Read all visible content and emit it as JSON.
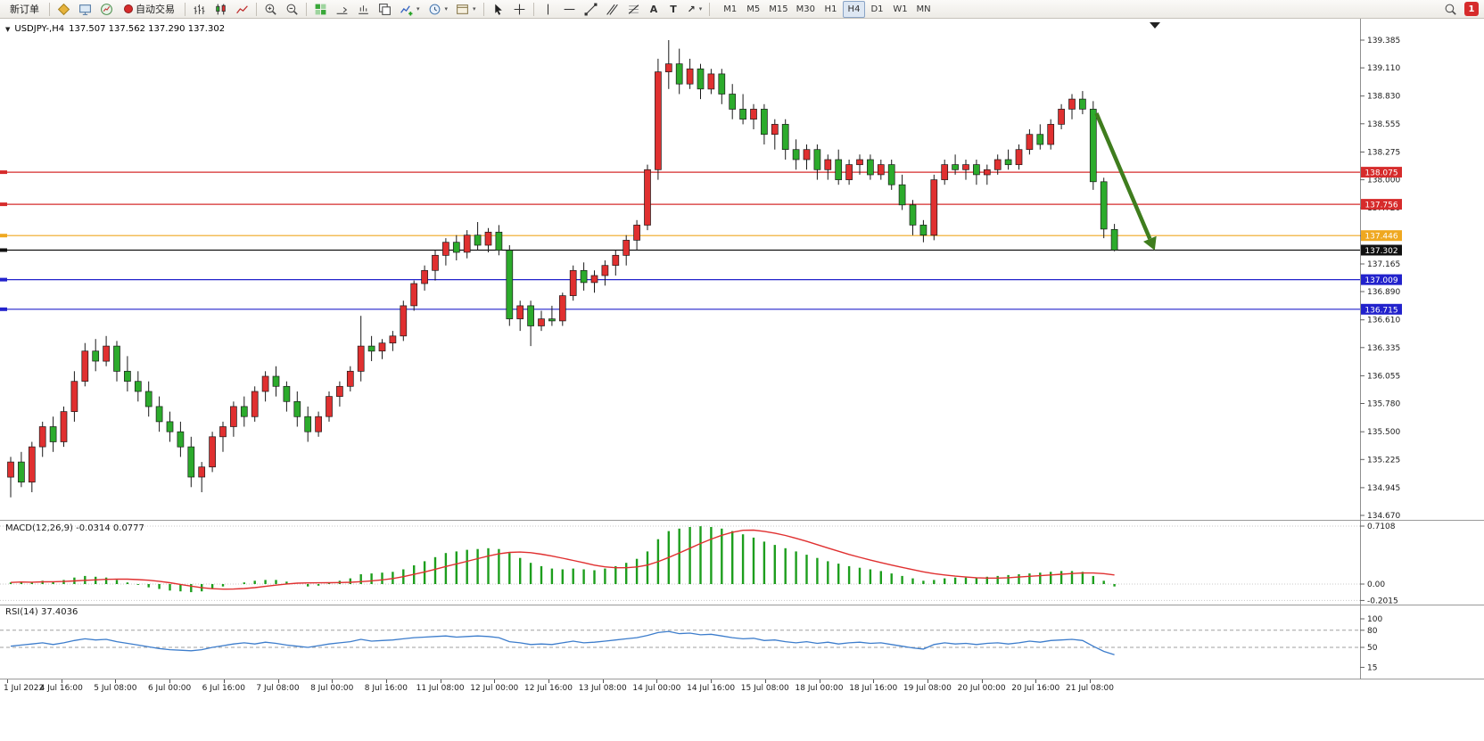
{
  "toolbar": {
    "new_order": "新订单",
    "auto_trading": "自动交易",
    "timeframes": [
      "M1",
      "M5",
      "M15",
      "M30",
      "H1",
      "H4",
      "D1",
      "W1",
      "MN"
    ],
    "active_timeframe": "H4",
    "notification_count": "1",
    "icons": {
      "text_tool": "A",
      "label_tool": "T",
      "arrow_tool": "↗",
      "caret": "▾",
      "collapse": "▼"
    }
  },
  "chart": {
    "symbol_period": "USDJPY-,H4",
    "ohlc_text": "137.507 137.562 137.290 137.302",
    "price_max": 139.385,
    "price_min": 134.67,
    "price_axis_labels": [
      "139.385",
      "139.110",
      "138.830",
      "138.555",
      "138.275",
      "138.000",
      "137.720",
      "137.445",
      "137.165",
      "136.890",
      "136.610",
      "136.335",
      "136.055",
      "135.780",
      "135.500",
      "135.225",
      "134.945",
      "134.670"
    ],
    "levels": [
      {
        "price": 138.075,
        "label": "138.075",
        "color": "#d62b2b"
      },
      {
        "price": 137.756,
        "label": "137.756",
        "color": "#d62b2b"
      },
      {
        "price": 137.446,
        "label": "137.446",
        "color": "#efa820"
      },
      {
        "price": 137.302,
        "label": "137.302",
        "color": "#101010"
      },
      {
        "price": 137.009,
        "label": "137.009",
        "color": "#2222cc"
      },
      {
        "price": 136.715,
        "label": "136.715",
        "color": "#2222cc"
      }
    ]
  },
  "chart_data": {
    "type": "candlestick",
    "title": "USDJPY- H4",
    "bull_color": "#e03030",
    "bear_color": "#2cab2c",
    "ohlc": [
      [
        135.05,
        135.25,
        134.85,
        135.2
      ],
      [
        135.2,
        135.3,
        134.95,
        135.0
      ],
      [
        135.0,
        135.4,
        134.9,
        135.35
      ],
      [
        135.35,
        135.6,
        135.25,
        135.55
      ],
      [
        135.55,
        135.65,
        135.3,
        135.4
      ],
      [
        135.4,
        135.75,
        135.35,
        135.7
      ],
      [
        135.7,
        136.1,
        135.6,
        136.0
      ],
      [
        136.0,
        136.38,
        135.95,
        136.3
      ],
      [
        136.3,
        136.42,
        136.1,
        136.2
      ],
      [
        136.2,
        136.45,
        136.15,
        136.35
      ],
      [
        136.35,
        136.4,
        136.0,
        136.1
      ],
      [
        136.1,
        136.25,
        135.9,
        136.0
      ],
      [
        136.0,
        136.1,
        135.8,
        135.9
      ],
      [
        135.9,
        136.0,
        135.65,
        135.75
      ],
      [
        135.75,
        135.85,
        135.5,
        135.6
      ],
      [
        135.6,
        135.7,
        135.4,
        135.5
      ],
      [
        135.5,
        135.6,
        135.25,
        135.35
      ],
      [
        135.35,
        135.45,
        134.95,
        135.05
      ],
      [
        135.05,
        135.2,
        134.9,
        135.15
      ],
      [
        135.15,
        135.5,
        135.1,
        135.45
      ],
      [
        135.45,
        135.6,
        135.3,
        135.55
      ],
      [
        135.55,
        135.8,
        135.45,
        135.75
      ],
      [
        135.75,
        135.85,
        135.55,
        135.65
      ],
      [
        135.65,
        135.95,
        135.6,
        135.9
      ],
      [
        135.9,
        136.1,
        135.8,
        136.05
      ],
      [
        136.05,
        136.15,
        135.85,
        135.95
      ],
      [
        135.95,
        136.0,
        135.7,
        135.8
      ],
      [
        135.8,
        135.9,
        135.55,
        135.65
      ],
      [
        135.65,
        135.75,
        135.4,
        135.5
      ],
      [
        135.5,
        135.7,
        135.45,
        135.65
      ],
      [
        135.65,
        135.9,
        135.6,
        135.85
      ],
      [
        135.85,
        136.0,
        135.75,
        135.95
      ],
      [
        135.95,
        136.15,
        135.9,
        136.1
      ],
      [
        136.1,
        136.65,
        136.0,
        136.35
      ],
      [
        136.35,
        136.45,
        136.2,
        136.3
      ],
      [
        136.3,
        136.42,
        136.22,
        136.38
      ],
      [
        136.38,
        136.5,
        136.3,
        136.45
      ],
      [
        136.45,
        136.8,
        136.4,
        136.75
      ],
      [
        136.75,
        137.0,
        136.7,
        136.97
      ],
      [
        136.97,
        137.15,
        136.9,
        137.1
      ],
      [
        137.1,
        137.3,
        137.0,
        137.25
      ],
      [
        137.25,
        137.42,
        137.15,
        137.38
      ],
      [
        137.38,
        137.45,
        137.2,
        137.28
      ],
      [
        137.28,
        137.5,
        137.22,
        137.45
      ],
      [
        137.45,
        137.58,
        137.3,
        137.35
      ],
      [
        137.35,
        137.52,
        137.28,
        137.48
      ],
      [
        137.48,
        137.55,
        137.25,
        137.3
      ],
      [
        137.3,
        137.35,
        136.55,
        136.62
      ],
      [
        136.62,
        136.8,
        136.5,
        136.75
      ],
      [
        136.75,
        136.8,
        136.35,
        136.55
      ],
      [
        136.55,
        136.7,
        136.5,
        136.62
      ],
      [
        136.62,
        136.75,
        136.55,
        136.6
      ],
      [
        136.6,
        136.88,
        136.55,
        136.85
      ],
      [
        136.85,
        137.15,
        136.8,
        137.1
      ],
      [
        137.1,
        137.18,
        136.9,
        136.98
      ],
      [
        136.98,
        137.1,
        136.88,
        137.05
      ],
      [
        137.05,
        137.2,
        136.95,
        137.15
      ],
      [
        137.15,
        137.3,
        137.05,
        137.25
      ],
      [
        137.25,
        137.45,
        137.15,
        137.4
      ],
      [
        137.4,
        137.6,
        137.3,
        137.55
      ],
      [
        137.55,
        138.15,
        137.5,
        138.1
      ],
      [
        138.1,
        139.2,
        138.0,
        139.07
      ],
      [
        139.07,
        139.385,
        138.9,
        139.15
      ],
      [
        139.15,
        139.3,
        138.85,
        138.95
      ],
      [
        138.95,
        139.2,
        138.9,
        139.1
      ],
      [
        139.1,
        139.15,
        138.8,
        138.9
      ],
      [
        138.9,
        139.1,
        138.85,
        139.05
      ],
      [
        139.05,
        139.1,
        138.75,
        138.85
      ],
      [
        138.85,
        138.95,
        138.6,
        138.7
      ],
      [
        138.7,
        138.85,
        138.55,
        138.6
      ],
      [
        138.6,
        138.75,
        138.5,
        138.7
      ],
      [
        138.7,
        138.75,
        138.35,
        138.45
      ],
      [
        138.45,
        138.6,
        138.3,
        138.55
      ],
      [
        138.55,
        138.6,
        138.2,
        138.3
      ],
      [
        138.3,
        138.4,
        138.1,
        138.2
      ],
      [
        138.2,
        138.35,
        138.1,
        138.3
      ],
      [
        138.3,
        138.35,
        138.0,
        138.1
      ],
      [
        138.1,
        138.25,
        138.0,
        138.2
      ],
      [
        138.2,
        138.3,
        137.95,
        138.0
      ],
      [
        138.0,
        138.2,
        137.95,
        138.15
      ],
      [
        138.15,
        138.25,
        138.05,
        138.2
      ],
      [
        138.2,
        138.25,
        138.0,
        138.05
      ],
      [
        138.05,
        138.2,
        138.0,
        138.15
      ],
      [
        138.15,
        138.2,
        137.9,
        137.95
      ],
      [
        137.95,
        138.05,
        137.7,
        137.75
      ],
      [
        137.75,
        137.8,
        137.45,
        137.55
      ],
      [
        137.55,
        137.6,
        137.38,
        137.45
      ],
      [
        137.45,
        138.05,
        137.4,
        138.0
      ],
      [
        138.0,
        138.2,
        137.95,
        138.15
      ],
      [
        138.15,
        138.25,
        138.05,
        138.1
      ],
      [
        138.1,
        138.2,
        138.0,
        138.15
      ],
      [
        138.15,
        138.2,
        137.95,
        138.05
      ],
      [
        138.05,
        138.15,
        137.95,
        138.1
      ],
      [
        138.1,
        138.25,
        138.05,
        138.2
      ],
      [
        138.2,
        138.3,
        138.1,
        138.15
      ],
      [
        138.15,
        138.35,
        138.1,
        138.3
      ],
      [
        138.3,
        138.5,
        138.25,
        138.45
      ],
      [
        138.45,
        138.55,
        138.3,
        138.35
      ],
      [
        138.35,
        138.6,
        138.3,
        138.55
      ],
      [
        138.55,
        138.75,
        138.5,
        138.7
      ],
      [
        138.7,
        138.85,
        138.6,
        138.8
      ],
      [
        138.8,
        138.88,
        138.65,
        138.7
      ],
      [
        138.7,
        138.78,
        137.9,
        137.98
      ],
      [
        137.98,
        138.02,
        137.42,
        137.51
      ],
      [
        137.507,
        137.562,
        137.29,
        137.302
      ]
    ],
    "arrow": {
      "from_i": 102.3,
      "from_price": 138.66,
      "to_i": 107.8,
      "to_price": 137.3,
      "color": "#3f7d1e"
    },
    "time_labels": [
      "1 Jul 2022",
      "4 Jul 16:00",
      "5 Jul 08:00",
      "6 Jul 00:00",
      "6 Jul 16:00",
      "7 Jul 08:00",
      "8 Jul 00:00",
      "8 Jul 16:00",
      "11 Jul 08:00",
      "12 Jul 00:00",
      "12 Jul 16:00",
      "13 Jul 08:00",
      "14 Jul 00:00",
      "14 Jul 16:00",
      "15 Jul 08:00",
      "18 Jul 00:00",
      "18 Jul 16:00",
      "19 Jul 08:00",
      "20 Jul 00:00",
      "20 Jul 16:00",
      "21 Jul 08:00"
    ],
    "macd": {
      "label": "MACD(12,26,9) -0.0314 0.0777",
      "scale_labels": [
        "0.7108",
        "0.00",
        "-0.2015"
      ],
      "scale_values": [
        0.7108,
        0,
        -0.2015
      ],
      "histogram_color": "#1d9e1d",
      "signal_color": "#e03030",
      "values": [
        0.02,
        0.03,
        0.02,
        0.04,
        0.03,
        0.05,
        0.08,
        0.1,
        0.09,
        0.08,
        0.05,
        0.02,
        -0.01,
        -0.04,
        -0.06,
        -0.08,
        -0.09,
        -0.1,
        -0.09,
        -0.06,
        -0.03,
        0.0,
        0.02,
        0.04,
        0.05,
        0.05,
        0.03,
        0.0,
        -0.03,
        -0.02,
        0.01,
        0.04,
        0.07,
        0.12,
        0.13,
        0.14,
        0.15,
        0.18,
        0.23,
        0.28,
        0.33,
        0.38,
        0.4,
        0.42,
        0.43,
        0.44,
        0.43,
        0.38,
        0.32,
        0.26,
        0.22,
        0.19,
        0.18,
        0.19,
        0.18,
        0.17,
        0.19,
        0.22,
        0.26,
        0.31,
        0.4,
        0.55,
        0.65,
        0.68,
        0.7,
        0.71,
        0.7,
        0.68,
        0.65,
        0.61,
        0.57,
        0.52,
        0.48,
        0.44,
        0.4,
        0.36,
        0.32,
        0.28,
        0.25,
        0.22,
        0.2,
        0.18,
        0.16,
        0.13,
        0.1,
        0.07,
        0.04,
        0.05,
        0.07,
        0.08,
        0.08,
        0.08,
        0.09,
        0.1,
        0.11,
        0.12,
        0.13,
        0.14,
        0.15,
        0.16,
        0.16,
        0.15,
        0.1,
        0.04,
        -0.03
      ]
    },
    "rsi": {
      "label": "RSI(14) 37.4036",
      "scale_labels": [
        "100",
        "80",
        "50",
        "15"
      ],
      "scale_values": [
        100,
        80,
        50,
        15
      ],
      "level_lines": [
        80,
        50
      ],
      "line_color": "#3d7dcc",
      "values": [
        52,
        54,
        56,
        58,
        55,
        58,
        62,
        65,
        63,
        64,
        60,
        57,
        54,
        51,
        48,
        46,
        45,
        44,
        46,
        50,
        53,
        56,
        58,
        56,
        59,
        57,
        54,
        52,
        50,
        53,
        56,
        58,
        60,
        64,
        61,
        62,
        63,
        65,
        67,
        68,
        69,
        70,
        68,
        69,
        70,
        69,
        67,
        60,
        58,
        55,
        56,
        55,
        58,
        61,
        58,
        59,
        61,
        63,
        65,
        67,
        71,
        76,
        78,
        74,
        75,
        72,
        73,
        70,
        67,
        65,
        66,
        62,
        63,
        60,
        58,
        60,
        57,
        59,
        56,
        58,
        59,
        57,
        58,
        55,
        52,
        49,
        47,
        55,
        58,
        56,
        57,
        55,
        57,
        58,
        56,
        58,
        61,
        59,
        62,
        63,
        64,
        62,
        52,
        43,
        37
      ]
    }
  }
}
